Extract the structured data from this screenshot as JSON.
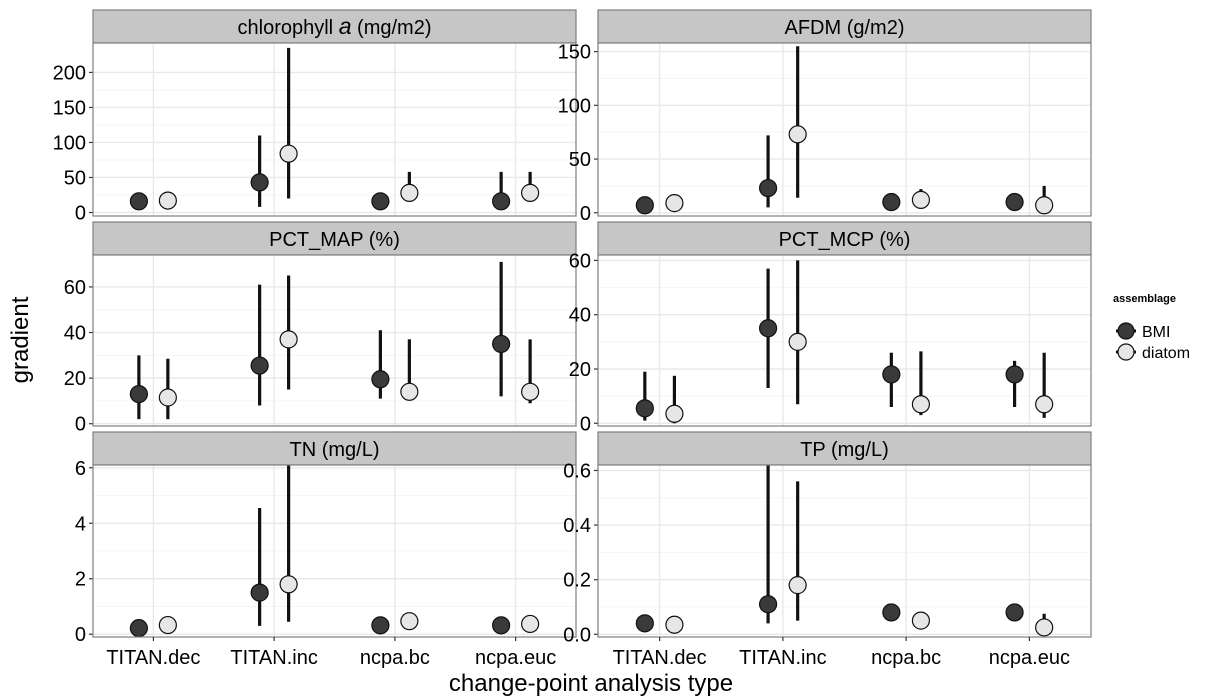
{
  "chart_data": {
    "type": "pointrange",
    "layout": "facet grid, 3 rows x 2 columns, free y scales",
    "xlabel": "change-point analysis type",
    "ylabel": "gradient",
    "categories": [
      "TITAN.dec",
      "TITAN.inc",
      "ncpa.bc",
      "ncpa.euc"
    ],
    "grid": true,
    "legend": {
      "title": "assemblage",
      "placement": "right",
      "entries": [
        {
          "name": "BMI",
          "color": "#3a3a3a"
        },
        {
          "name": "diatom",
          "color": "#e6e6e6"
        }
      ]
    },
    "panels": [
      {
        "title_pre": "chlorophyll ",
        "title_italic": "a",
        "title_post": " (mg/m2)",
        "ylim": [
          -5,
          242
        ],
        "yticks": [
          0,
          50,
          100,
          150,
          200
        ],
        "series": [
          {
            "name": "BMI",
            "values": [
              16,
              43,
              16,
              16
            ],
            "lower": [
              16,
              8,
              16,
              16
            ],
            "upper": [
              16,
              110,
              16,
              58
            ]
          },
          {
            "name": "diatom",
            "values": [
              17,
              84,
              28,
              28
            ],
            "lower": [
              14,
              20,
              16,
              16
            ],
            "upper": [
              30,
              235,
              58,
              58
            ]
          }
        ]
      },
      {
        "title": "AFDM (g/m2)",
        "ylim": [
          -3,
          158
        ],
        "yticks": [
          0,
          50,
          100,
          150
        ],
        "series": [
          {
            "name": "BMI",
            "values": [
              7,
              23,
              10,
              10
            ],
            "lower": [
              7,
              5,
              10,
              10
            ],
            "upper": [
              7,
              72,
              10,
              10
            ]
          },
          {
            "name": "diatom",
            "values": [
              9,
              73,
              12,
              7
            ],
            "lower": [
              7,
              14,
              7,
              0
            ],
            "upper": [
              14,
              155,
              22,
              25
            ]
          }
        ]
      },
      {
        "title": "PCT_MAP (%)",
        "ylim": [
          -1,
          74
        ],
        "yticks": [
          0,
          20,
          40,
          60
        ],
        "series": [
          {
            "name": "BMI",
            "values": [
              13,
              25.5,
              19.5,
              35
            ],
            "lower": [
              2,
              8,
              11,
              12
            ],
            "upper": [
              30,
              61,
              41,
              71
            ]
          },
          {
            "name": "diatom",
            "values": [
              11.5,
              37,
              14,
              14
            ],
            "lower": [
              2,
              15,
              11,
              9
            ],
            "upper": [
              28.5,
              65,
              37,
              37
            ]
          }
        ]
      },
      {
        "title": "PCT_MCP (%)",
        "ylim": [
          -1,
          62
        ],
        "yticks": [
          0,
          20,
          40,
          60
        ],
        "series": [
          {
            "name": "BMI",
            "values": [
              5.5,
              35,
              18,
              18
            ],
            "lower": [
              1,
              13,
              6,
              6
            ],
            "upper": [
              19,
              57,
              26,
              23
            ]
          },
          {
            "name": "diatom",
            "values": [
              3.5,
              30,
              7,
              7
            ],
            "lower": [
              0,
              7,
              3,
              2
            ],
            "upper": [
              17.5,
              60,
              26.5,
              26
            ]
          }
        ]
      },
      {
        "title": "TN (mg/L)",
        "ylim": [
          -0.1,
          6.1
        ],
        "yticks": [
          0,
          2,
          4,
          6
        ],
        "series": [
          {
            "name": "BMI",
            "values": [
              0.22,
              1.5,
              0.32,
              0.32
            ],
            "lower": [
              0.22,
              0.3,
              0.32,
              0.32
            ],
            "upper": [
              0.22,
              4.55,
              0.32,
              0.32
            ]
          },
          {
            "name": "diatom",
            "values": [
              0.33,
              1.8,
              0.47,
              0.37
            ],
            "lower": [
              0.22,
              0.45,
              0.47,
              0.37
            ],
            "upper": [
              0.33,
              6.1,
              0.47,
              0.37
            ]
          }
        ]
      },
      {
        "title": "TP (mg/L)",
        "ylim": [
          -0.01,
          0.62
        ],
        "yticks": [
          0.0,
          0.2,
          0.4,
          0.6
        ],
        "series": [
          {
            "name": "BMI",
            "values": [
              0.04,
              0.11,
              0.08,
              0.08
            ],
            "lower": [
              0.04,
              0.04,
              0.08,
              0.08
            ],
            "upper": [
              0.04,
              0.62,
              0.08,
              0.08
            ]
          },
          {
            "name": "diatom",
            "values": [
              0.035,
              0.18,
              0.05,
              0.025
            ],
            "lower": [
              0.035,
              0.05,
              0.05,
              0.0
            ],
            "upper": [
              0.035,
              0.56,
              0.08,
              0.075
            ]
          }
        ]
      }
    ]
  }
}
